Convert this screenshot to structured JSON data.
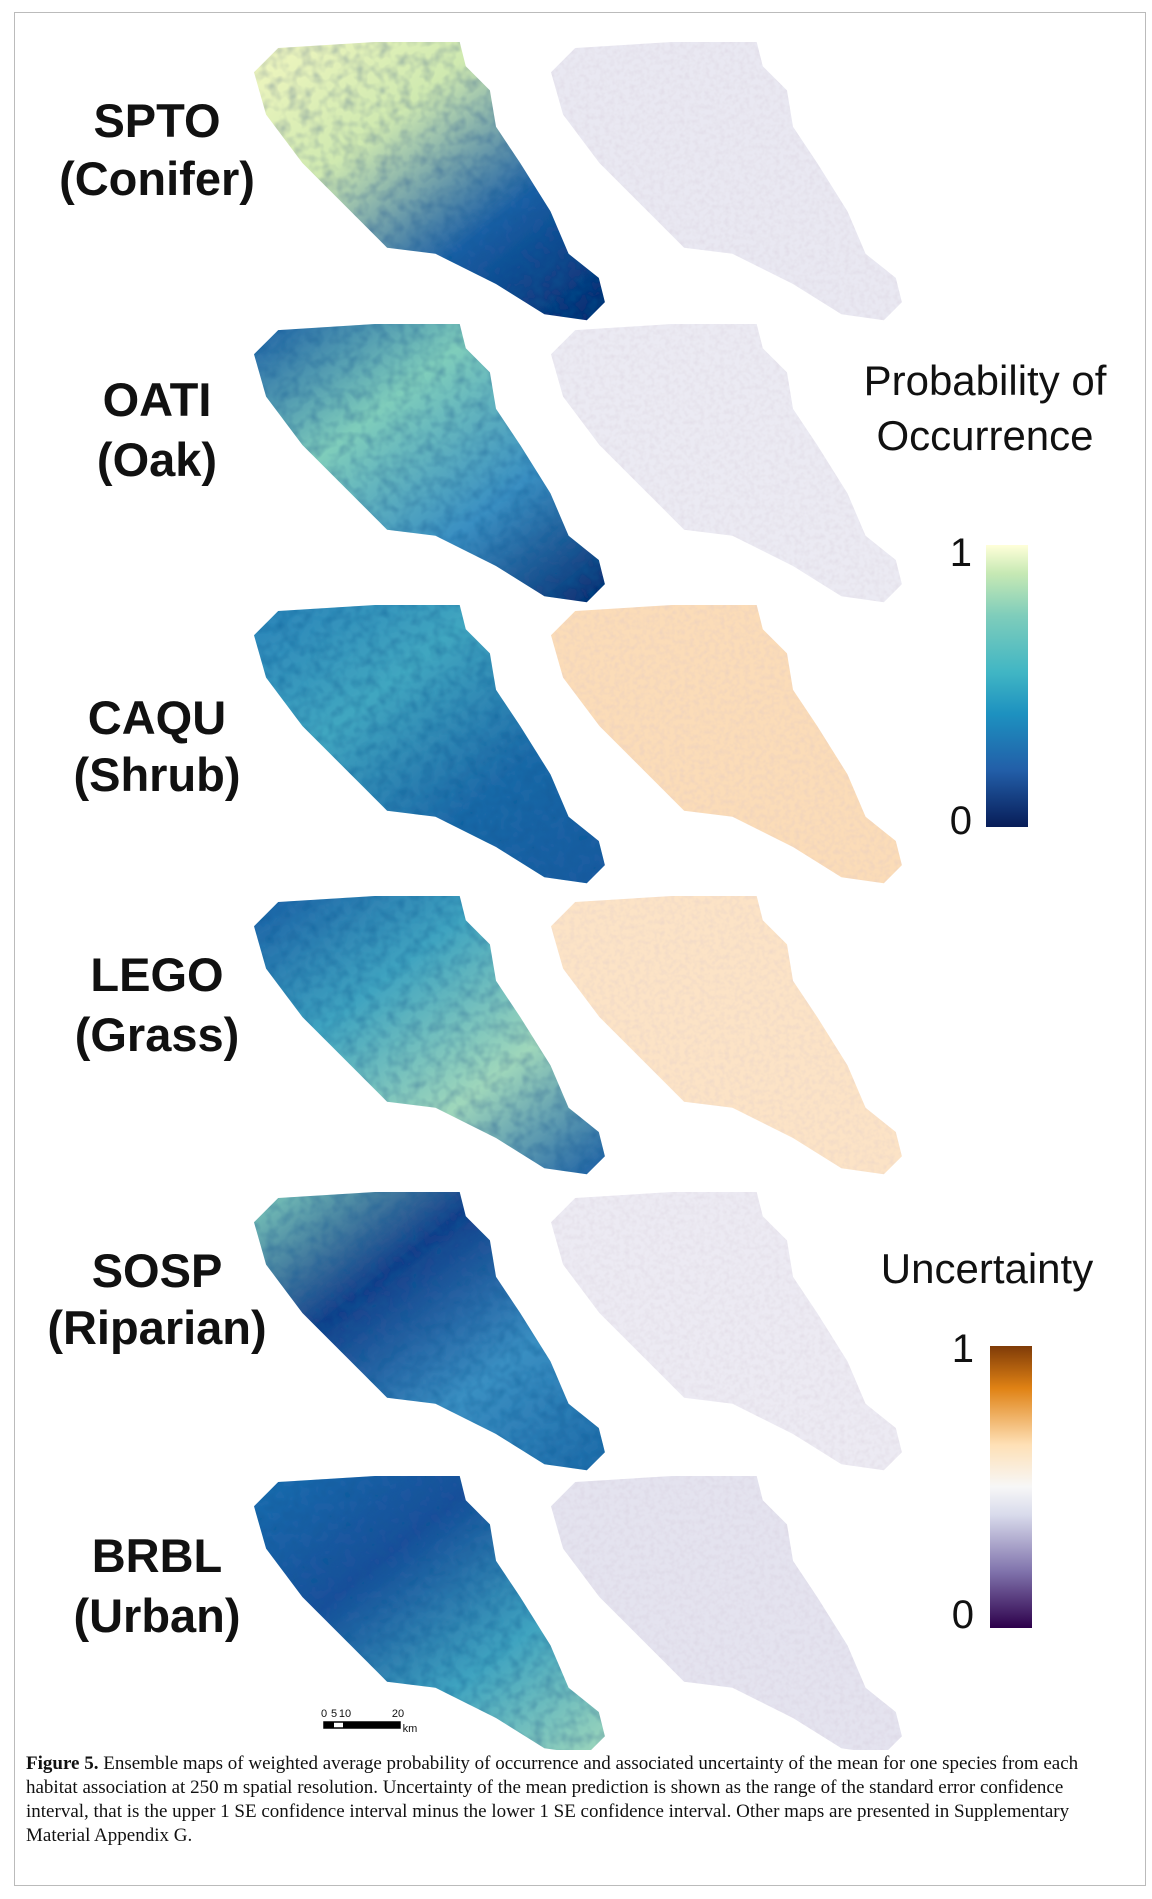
{
  "rows": [
    {
      "code": "SPTO",
      "habitat": "(Conifer)"
    },
    {
      "code": "OATI",
      "habitat": "(Oak)"
    },
    {
      "code": "CAQU",
      "habitat": "(Shrub)"
    },
    {
      "code": "LEGO",
      "habitat": "(Grass)"
    },
    {
      "code": "SOSP",
      "habitat": "(Riparian)"
    },
    {
      "code": "BRBL",
      "habitat": "(Urban)"
    }
  ],
  "legend_probability": {
    "title_lines": [
      "Probability of",
      "Occurrence"
    ],
    "max_label": "1",
    "min_label": "0"
  },
  "legend_uncertainty": {
    "title": "Uncertainty",
    "max_label": "1",
    "min_label": "0"
  },
  "scale_bar": {
    "labels": [
      "0",
      "5",
      "10",
      "20"
    ],
    "unit": "km"
  },
  "caption": {
    "label": "Figure 5.",
    "text": "Ensemble maps of weighted average probability of occurrence and associated uncertainty of the mean for one species from each habitat association at 250 m spatial resolution. Uncertainty of the mean prediction is shown as the range of the standard error confidence interval, that is the upper 1 SE confidence interval minus the lower 1 SE confidence interval. Other maps are presented in Supplementary Material Appendix G."
  }
}
